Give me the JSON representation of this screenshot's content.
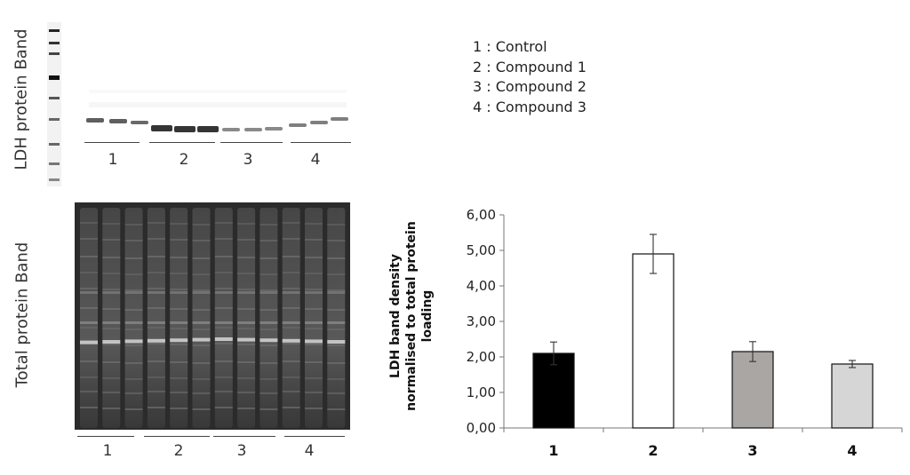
{
  "labels": {
    "ldh_band": "LDH protein Band",
    "total_band": "Total protein Band"
  },
  "legend": [
    "1 : Control",
    "2 : Compound 1",
    "3 : Compound 2",
    "4 : Compound 3"
  ],
  "blot_lanes": [
    "1",
    "2",
    "3",
    "4"
  ],
  "colors": {
    "bar1": "#000000",
    "bar2": "#ffffff",
    "bar3": "#a9a6a4",
    "bar4": "#d6d6d6",
    "axis": "#777777"
  },
  "chart_data": {
    "type": "bar",
    "title": "",
    "xlabel": "",
    "ylabel": "LDH band density normalised to total protein loading",
    "ylabel_lines": [
      "LDH band density",
      "normalised to total protein",
      "loading"
    ],
    "categories": [
      "1",
      "2",
      "3",
      "4"
    ],
    "values": [
      2.1,
      4.9,
      2.15,
      1.8
    ],
    "error": [
      0.32,
      0.55,
      0.28,
      0.1
    ],
    "ylim": [
      0,
      6
    ],
    "yticks": [
      "0,00",
      "1,00",
      "2,00",
      "3,00",
      "4,00",
      "5,00",
      "6,00"
    ],
    "grid": false,
    "legend": "none"
  }
}
